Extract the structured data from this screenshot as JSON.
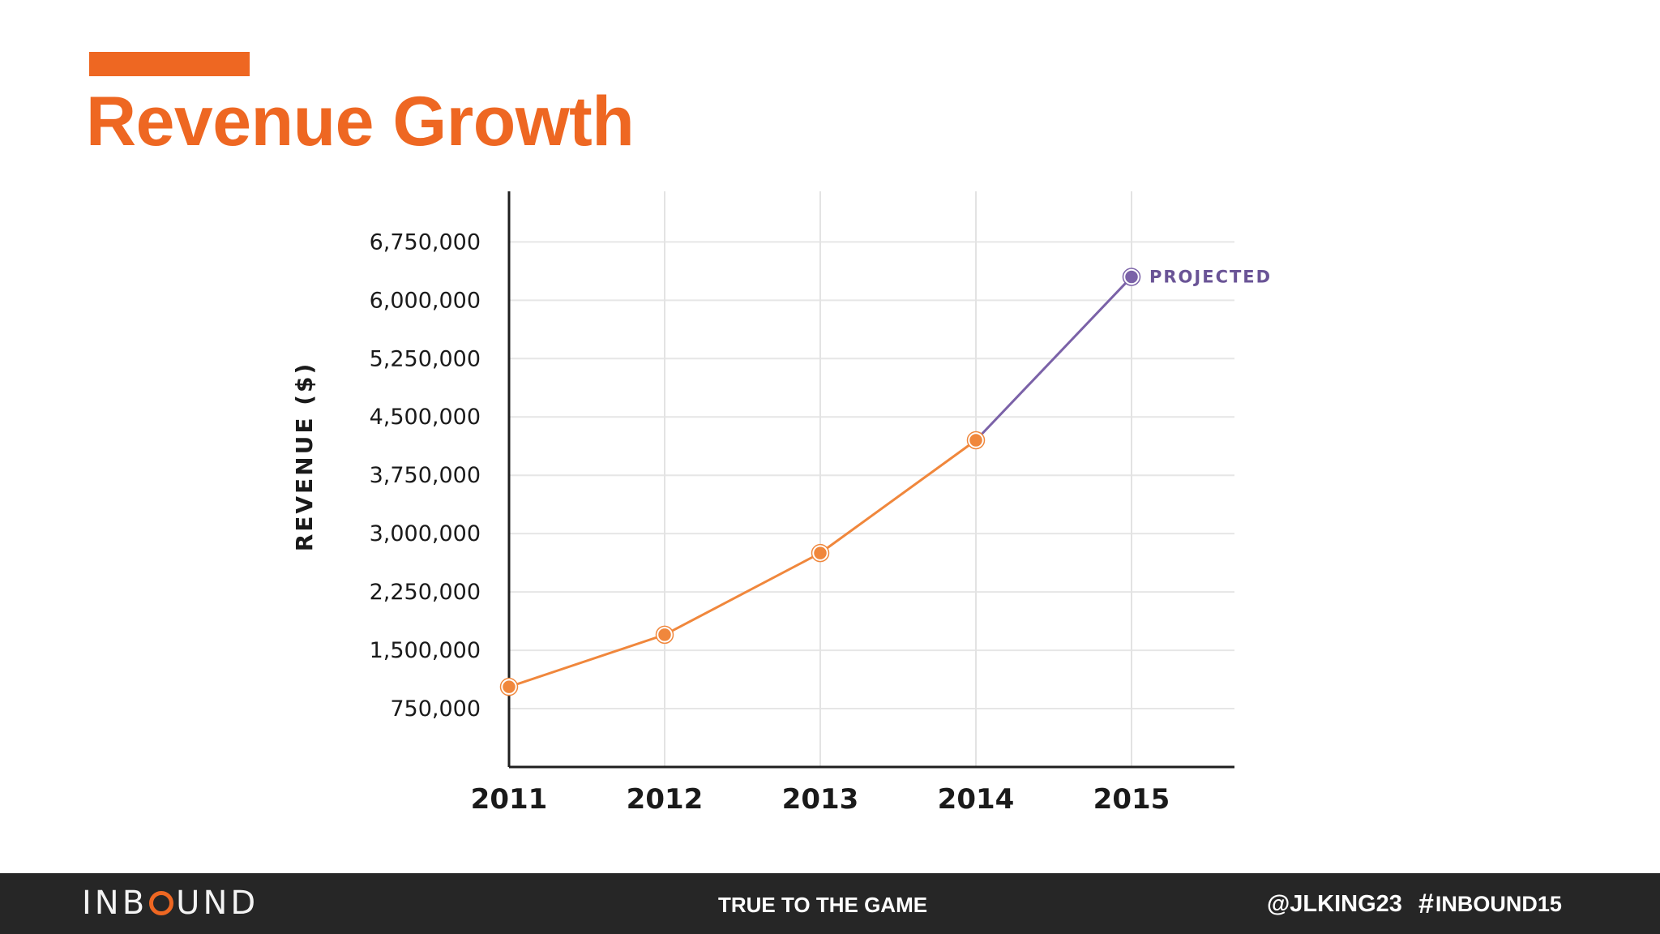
{
  "slide": {
    "title": "Revenue Growth"
  },
  "chart_data": {
    "type": "line",
    "x": [
      "2011",
      "2012",
      "2013",
      "2014",
      "2015"
    ],
    "series": [
      {
        "values": [
          1030000,
          1700000,
          2750000,
          4200000,
          6300000
        ]
      }
    ],
    "actual_color": "#f0873c",
    "projected_color": "#7b62a8",
    "annotation": {
      "text": "PROJECTED",
      "x": "2015"
    },
    "title": "",
    "xlabel": "",
    "ylabel": "REVENUE ($)",
    "yticks": [
      750000,
      1500000,
      2250000,
      3000000,
      3750000,
      4500000,
      5250000,
      6000000,
      6750000
    ],
    "ytick_labels": [
      "750,000",
      "1,500,000",
      "2,250,000",
      "3,000,000",
      "3,750,000",
      "4,500,000",
      "5,250,000",
      "6,000,000",
      "6,750,000"
    ],
    "ylim": [
      0,
      7400000
    ],
    "grid": true,
    "legend": "none"
  },
  "footer": {
    "logo_left": "INB",
    "logo_right": "UND",
    "tagline": "TRUE TO THE GAME",
    "handle": "@JLKING23",
    "hash_icon": "#",
    "hashtag": "INBOUND15"
  },
  "icons": {
    "logo_ring": "orange-ring-icon",
    "hash": "hash-icon"
  }
}
